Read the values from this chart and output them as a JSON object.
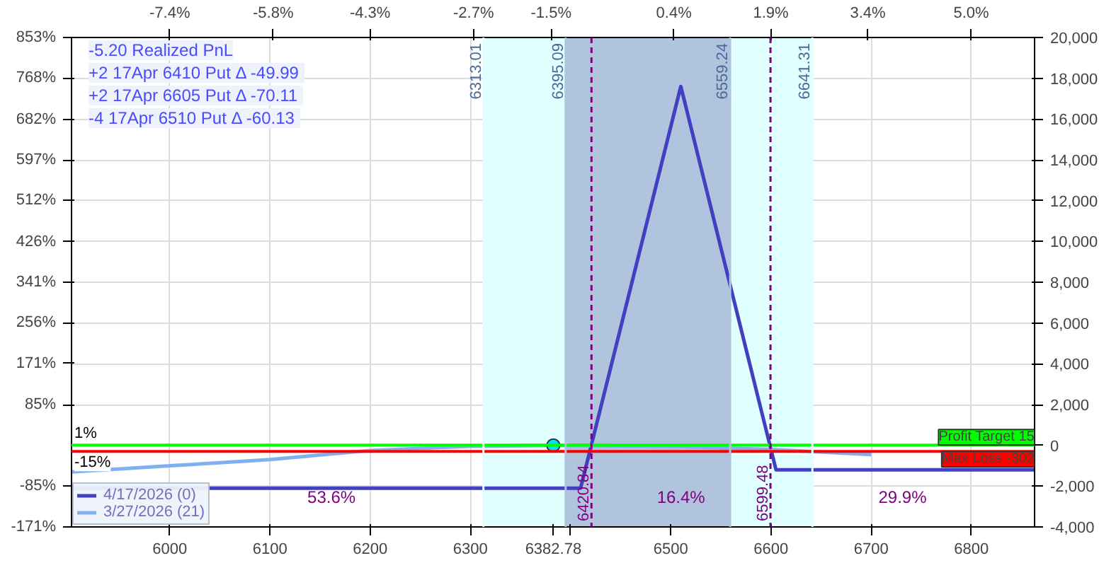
{
  "chart_data": {
    "type": "line",
    "xlim": [
      5902,
      6863
    ],
    "xticks": [
      6000,
      6100,
      6200,
      6300,
      {
        "value": 6382.78,
        "label": "6382.78"
      },
      {
        "value": 6400,
        "label": null
      },
      6500,
      6600,
      6700,
      6800
    ],
    "ylim": [
      -4000,
      20000
    ],
    "yticks": [
      {
        "value": -4000,
        "label": "-4,000"
      },
      {
        "value": -2000,
        "label": "-2,000"
      },
      0,
      {
        "value": 2000,
        "label": "2,000"
      },
      {
        "value": 4000,
        "label": "4,000"
      },
      {
        "value": 6000,
        "label": "6,000"
      },
      {
        "value": 8000,
        "label": "8,000"
      },
      {
        "value": 10000,
        "label": "10,000"
      },
      {
        "value": 12000,
        "label": "12,000"
      },
      {
        "value": 14000,
        "label": "14,000"
      },
      {
        "value": 16000,
        "label": "16,000"
      },
      {
        "value": 18000,
        "label": "18,000"
      },
      {
        "value": 20000,
        "label": "20,000"
      }
    ],
    "y2lim": [
      -171,
      853
    ],
    "y2ticks": [
      {
        "value": -171,
        "label": "-171%"
      },
      {
        "value": -85,
        "label": "-85%"
      },
      {
        "value": 85,
        "label": "85%"
      },
      {
        "value": 171,
        "label": "171%"
      },
      {
        "value": 256,
        "label": "256%"
      },
      {
        "value": 341,
        "label": "341%"
      },
      {
        "value": 426,
        "label": "426%"
      },
      {
        "value": 512,
        "label": "512%"
      },
      {
        "value": 597,
        "label": "597%"
      },
      {
        "value": 682,
        "label": "682%"
      },
      {
        "value": 768,
        "label": "768%"
      },
      {
        "value": 853,
        "label": "853%"
      }
    ],
    "x2lim": [
      -8.92,
      5.98
    ],
    "x2ticks": [
      {
        "value": -7.4,
        "label": "-7.4%"
      },
      {
        "value": -5.8,
        "label": "-5.8%"
      },
      {
        "value": -4.3,
        "label": "-4.3%"
      },
      {
        "value": -2.7,
        "label": "-2.7%"
      },
      {
        "value": -1.5,
        "label": "-1.5%"
      },
      {
        "value": 0.4,
        "label": "0.4%"
      },
      {
        "value": 1.9,
        "label": "1.9%"
      },
      {
        "value": 3.4,
        "label": "3.4%"
      },
      {
        "value": 5.0,
        "label": "5.0%"
      }
    ],
    "grid": true,
    "legend": "bottom left",
    "marker": "none",
    "line_style": "solid",
    "series": [
      {
        "name": "4/17/2026 (0)",
        "color": "#4040c0",
        "x": [
          5902,
          6410,
          6510,
          6605,
          6863
        ],
        "values": [
          -2100,
          -2100,
          17600,
          -1200,
          -1200
        ]
      },
      {
        "name": "3/27/2026 (21)",
        "color": "#80b0f0",
        "x": [
          5902,
          6100,
          6200,
          6300,
          6383,
          6500,
          6600,
          6700
        ],
        "values": [
          -1300,
          -700,
          -250,
          -50,
          0,
          -50,
          -200,
          -450
        ]
      },
      {
        "type": "scatter",
        "marker": "circle",
        "color": "#00e5ee",
        "x": [
          6382.78
        ],
        "values": [
          0
        ]
      }
    ],
    "bands": [
      {
        "axis": "x",
        "from": 6313.01,
        "to": 6641.31,
        "color": "#e0ffff"
      },
      {
        "axis": "x",
        "from": 6395.09,
        "to": 6559.24,
        "color": "#b0c4de"
      }
    ],
    "ref_lines": [
      {
        "axis": "y",
        "value": 15,
        "label": "Profit Target 15",
        "color": "#00ff00",
        "line_style": "solid"
      },
      {
        "axis": "y",
        "value": -302,
        "label": "Max Loss -302",
        "color": "#ff0000",
        "line_style": "solid"
      },
      {
        "axis": "x",
        "value": 6420.84,
        "label": "6420.84",
        "color": "#800080",
        "line_style": "dashed"
      },
      {
        "axis": "x",
        "value": 6599.48,
        "label": "6599.48",
        "color": "#800080",
        "line_style": "dashed"
      },
      {
        "axis": "x",
        "value": 6313.01,
        "label": "6313.01",
        "color": "#e0ffff",
        "line_style": "solid"
      },
      {
        "axis": "x",
        "value": 6395.09,
        "label": "6395.09",
        "color": "#b0c4de",
        "line_style": "solid"
      },
      {
        "axis": "x",
        "value": 6559.24,
        "label": "6559.24",
        "color": "#b0c4de",
        "line_style": "solid"
      },
      {
        "axis": "x",
        "value": 6641.31,
        "label": "6641.31",
        "color": "#e0ffff",
        "line_style": "solid"
      }
    ],
    "annotations": [
      "-5.20 Realized PnL",
      "+2 17Apr 6410 Put Δ  -49.99",
      "+2 17Apr 6605 Put Δ  -70.11",
      "-4 17Apr 6510 Put Δ  -60.13",
      {
        "text": "1%",
        "x": 5902,
        "y": 15
      },
      {
        "text": "-15%",
        "x": 5902,
        "y": -302
      },
      "53.6%",
      "16.4%",
      "29.9%"
    ]
  }
}
